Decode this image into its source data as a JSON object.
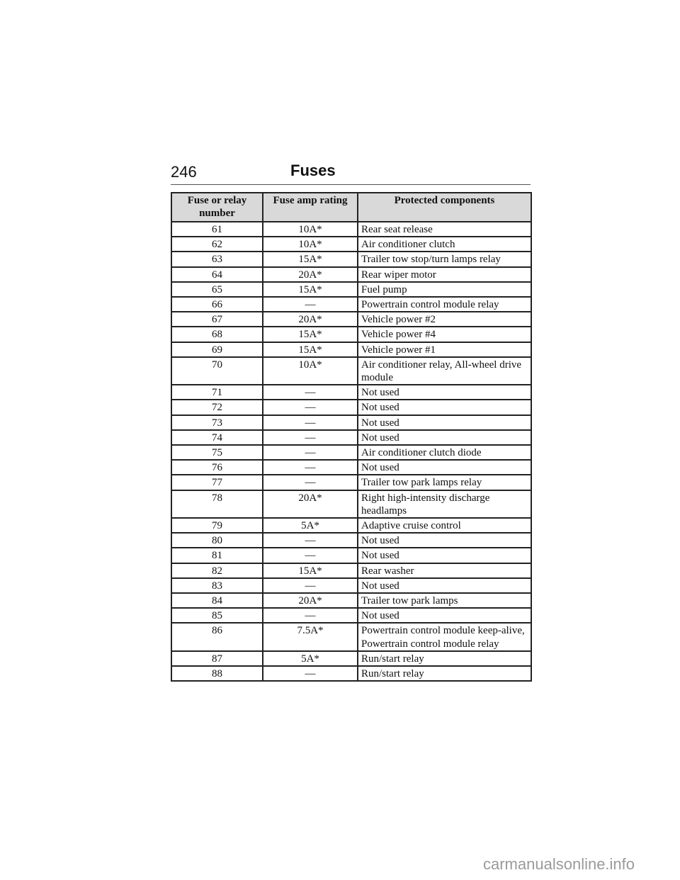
{
  "page": {
    "number": "246",
    "title": "Fuses"
  },
  "table": {
    "headers": [
      "Fuse or relay number",
      "Fuse amp rating",
      "Protected components"
    ],
    "rows": [
      [
        "61",
        "10A*",
        "Rear seat release"
      ],
      [
        "62",
        "10A*",
        "Air conditioner clutch"
      ],
      [
        "63",
        "15A*",
        "Trailer tow stop/turn lamps relay"
      ],
      [
        "64",
        "20A*",
        "Rear wiper motor"
      ],
      [
        "65",
        "15A*",
        "Fuel pump"
      ],
      [
        "66",
        "—",
        "Powertrain control module relay"
      ],
      [
        "67",
        "20A*",
        "Vehicle power #2"
      ],
      [
        "68",
        "15A*",
        "Vehicle power #4"
      ],
      [
        "69",
        "15A*",
        "Vehicle power #1"
      ],
      [
        "70",
        "10A*",
        "Air conditioner relay, All-wheel drive module"
      ],
      [
        "71",
        "—",
        "Not used"
      ],
      [
        "72",
        "—",
        "Not used"
      ],
      [
        "73",
        "—",
        "Not used"
      ],
      [
        "74",
        "—",
        "Not used"
      ],
      [
        "75",
        "—",
        "Air conditioner clutch diode"
      ],
      [
        "76",
        "—",
        "Not used"
      ],
      [
        "77",
        "—",
        "Trailer tow park lamps relay"
      ],
      [
        "78",
        "20A*",
        "Right high-intensity discharge headlamps"
      ],
      [
        "79",
        "5A*",
        "Adaptive cruise control"
      ],
      [
        "80",
        "—",
        "Not used"
      ],
      [
        "81",
        "—",
        "Not used"
      ],
      [
        "82",
        "15A*",
        "Rear washer"
      ],
      [
        "83",
        "—",
        "Not used"
      ],
      [
        "84",
        "20A*",
        "Trailer tow park lamps"
      ],
      [
        "85",
        "—",
        "Not used"
      ],
      [
        "86",
        "7.5A*",
        "Powertrain control module keep-alive, Powertrain control module relay"
      ],
      [
        "87",
        "5A*",
        "Run/start relay"
      ],
      [
        "88",
        "—",
        "Run/start relay"
      ]
    ]
  },
  "watermark": "carmanualsonline.info"
}
